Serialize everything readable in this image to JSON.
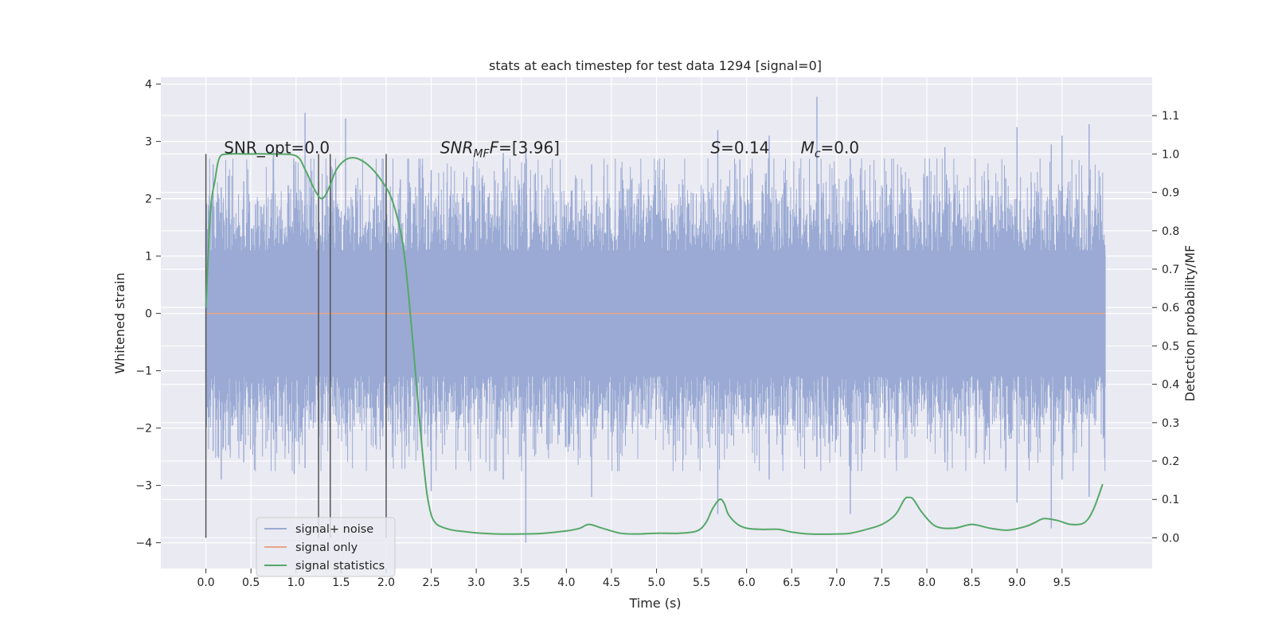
{
  "chart_data": {
    "type": "line",
    "title": "stats at each timestep for test data 1294 [signal=0]",
    "xlabel": "Time (s)",
    "ylabel": "Whitened strain",
    "y2label": "Detection probability/MF",
    "xlim": [
      -0.5,
      10.5
    ],
    "ylim": [
      -4.45,
      4.12
    ],
    "y2lim": [
      -0.08,
      1.2
    ],
    "xticks": [
      "0.0",
      "0.5",
      "1.0",
      "1.5",
      "2.0",
      "2.5",
      "3.0",
      "3.5",
      "4.0",
      "4.5",
      "5.0",
      "5.5",
      "6.0",
      "6.5",
      "7.0",
      "7.5",
      "8.0",
      "8.5",
      "9.0",
      "9.5"
    ],
    "yticks": [
      "4",
      "3",
      "2",
      "1",
      "0",
      "−1",
      "−2",
      "−3",
      "−4"
    ],
    "y2ticks": [
      "1.1",
      "1.0",
      "0.9",
      "0.8",
      "0.7",
      "0.6",
      "0.5",
      "0.4",
      "0.3",
      "0.2",
      "0.1",
      "0.0"
    ],
    "grid": true,
    "legend_position": "lower-left",
    "colors": {
      "background": "#eaeaf2",
      "grid": "#ffffff",
      "noise": "#9aaad4",
      "signal": "#e8a48a",
      "stats": "#55a868",
      "vlines": "#555555",
      "text": "#262626"
    },
    "series": [
      {
        "name": "signal+ noise",
        "axis": "left",
        "description_range": [
          -4.0,
          3.78
        ],
        "x_range": [
          0.0,
          9.98
        ],
        "spikes": [
          [
            0.0,
            1.6,
            -1.2
          ],
          [
            0.08,
            2.6,
            -2.4
          ],
          [
            0.17,
            2.2,
            -2.9
          ],
          [
            0.25,
            2.4,
            -2.3
          ],
          [
            0.42,
            2.3,
            -2.6
          ],
          [
            0.75,
            2.9,
            -2.2
          ],
          [
            0.98,
            2.6,
            -2.8
          ],
          [
            1.1,
            3.5,
            -2.7
          ],
          [
            1.25,
            2.3,
            -2.6
          ],
          [
            1.55,
            3.4,
            -2.1
          ],
          [
            2.0,
            2.2,
            -2.6
          ],
          [
            2.5,
            2.5,
            -3.1
          ],
          [
            3.3,
            2.8,
            -2.9
          ],
          [
            3.55,
            2.9,
            -4.0
          ],
          [
            4.28,
            2.6,
            -3.2
          ],
          [
            5.68,
            3.2,
            -3.5
          ],
          [
            6.25,
            3.1,
            -2.9
          ],
          [
            6.78,
            3.78,
            -2.5
          ],
          [
            7.15,
            2.7,
            -3.5
          ],
          [
            8.2,
            2.9,
            -2.6
          ],
          [
            9.0,
            3.25,
            -3.3
          ],
          [
            9.38,
            2.95,
            -3.75
          ],
          [
            9.5,
            3.1,
            -2.9
          ],
          [
            9.8,
            3.3,
            -3.2
          ]
        ]
      },
      {
        "name": "signal only",
        "axis": "left",
        "x": [
          0.0,
          9.98
        ],
        "y": [
          0.0,
          0.0
        ]
      },
      {
        "name": "signal statistics",
        "axis": "right",
        "x": [
          0.0,
          0.05,
          0.1,
          0.15,
          0.25,
          0.5,
          0.75,
          1.0,
          1.1,
          1.2,
          1.27,
          1.32,
          1.38,
          1.45,
          1.55,
          1.65,
          1.75,
          1.85,
          1.95,
          2.05,
          2.15,
          2.2,
          2.25,
          2.3,
          2.35,
          2.4,
          2.45,
          2.5,
          2.55,
          2.6,
          2.7,
          2.8,
          3.0,
          3.25,
          3.5,
          3.75,
          4.0,
          4.15,
          4.25,
          4.4,
          4.6,
          4.8,
          5.0,
          5.25,
          5.45,
          5.55,
          5.62,
          5.7,
          5.75,
          5.8,
          5.9,
          6.0,
          6.15,
          6.35,
          6.5,
          6.7,
          7.0,
          7.15,
          7.3,
          7.5,
          7.65,
          7.75,
          7.8,
          7.85,
          7.95,
          8.1,
          8.3,
          8.5,
          8.7,
          8.9,
          9.1,
          9.2,
          9.3,
          9.45,
          9.6,
          9.75,
          9.85,
          9.95
        ],
        "y": [
          0.6,
          0.85,
          0.93,
          0.99,
          1.0,
          1.0,
          1.0,
          0.995,
          0.96,
          0.91,
          0.885,
          0.89,
          0.92,
          0.96,
          0.985,
          0.99,
          0.98,
          0.96,
          0.93,
          0.89,
          0.81,
          0.74,
          0.63,
          0.5,
          0.36,
          0.23,
          0.12,
          0.06,
          0.038,
          0.03,
          0.022,
          0.018,
          0.013,
          0.01,
          0.01,
          0.012,
          0.018,
          0.025,
          0.035,
          0.025,
          0.012,
          0.01,
          0.012,
          0.012,
          0.018,
          0.04,
          0.075,
          0.1,
          0.09,
          0.06,
          0.035,
          0.025,
          0.022,
          0.022,
          0.015,
          0.01,
          0.01,
          0.012,
          0.02,
          0.035,
          0.06,
          0.1,
          0.105,
          0.1,
          0.065,
          0.03,
          0.025,
          0.035,
          0.025,
          0.02,
          0.03,
          0.04,
          0.05,
          0.045,
          0.035,
          0.04,
          0.075,
          0.14
        ]
      }
    ],
    "vlines": {
      "x": [
        0.0,
        1.25,
        1.38,
        2.0
      ],
      "axis": "right",
      "ymin": 0.0,
      "ymax": 1.0
    },
    "annotations": [
      {
        "id": "snr-opt",
        "text": "SNR_opt=0.0",
        "x": 0.2,
        "y2": 1.0
      },
      {
        "id": "snr-mf-main",
        "text": "SNR",
        "sub": "MF",
        "suffix": "F=[3.96]",
        "x": 2.6,
        "y2": 1.0
      },
      {
        "id": "s-value",
        "text": "S",
        "suffix": "=0.14",
        "x": 5.6,
        "y2": 1.0
      },
      {
        "id": "mc-value",
        "text": "M",
        "sub": "c",
        "suffix": "=0.0",
        "x": 6.6,
        "y2": 1.0
      }
    ]
  }
}
